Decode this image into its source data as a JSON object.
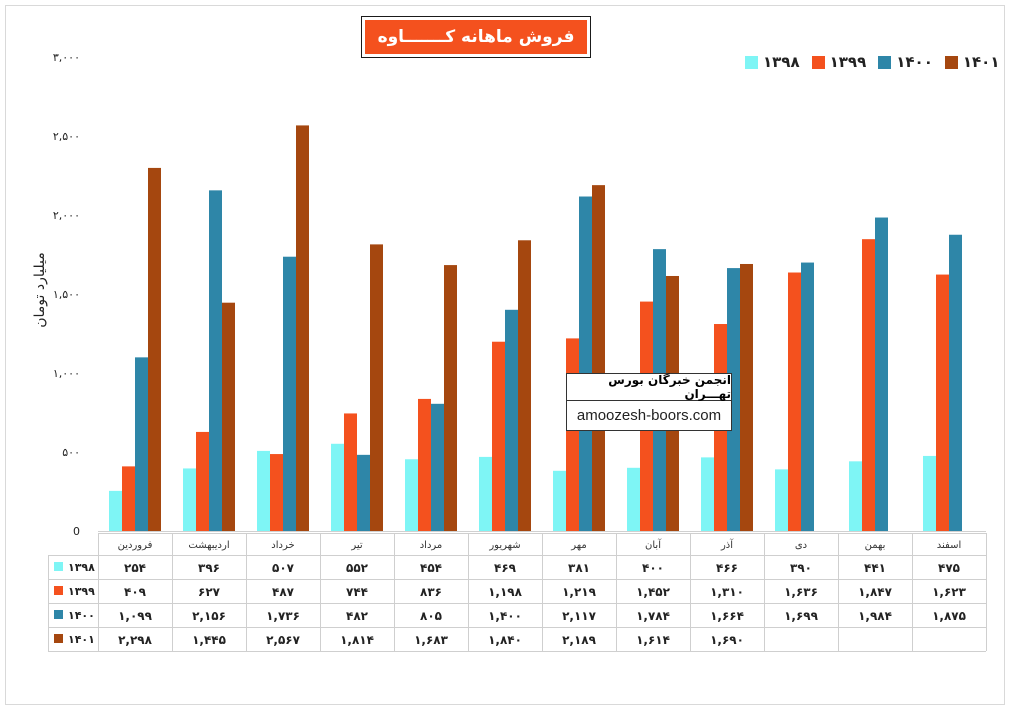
{
  "chart_data": {
    "type": "bar",
    "title": "فروش ماهانه کـــــــاوه",
    "ylabel": "میلیارد تومان",
    "xlabel": "",
    "ylim": [
      0,
      3000
    ],
    "yticks": [
      "0",
      "۵۰۰",
      "۱,۰۰۰",
      "۱,۵۰۰",
      "۲,۰۰۰",
      "۲,۵۰۰",
      "۳,۰۰۰"
    ],
    "ytick_values": [
      0,
      500,
      1000,
      1500,
      2000,
      2500,
      3000
    ],
    "legend_position": "top-right",
    "grid": false,
    "categories": [
      "فروردین",
      "اردیبهشت",
      "خرداد",
      "تیر",
      "مرداد",
      "شهریور",
      "مهر",
      "آبان",
      "آذر",
      "دی",
      "بهمن",
      "اسفند"
    ],
    "series": [
      {
        "name": "۱۳۹۸",
        "color": "#7ef5f5",
        "values": [
          254,
          396,
          507,
          552,
          454,
          469,
          381,
          400,
          466,
          390,
          441,
          475
        ],
        "labels": [
          "۲۵۴",
          "۳۹۶",
          "۵۰۷",
          "۵۵۲",
          "۴۵۴",
          "۴۶۹",
          "۳۸۱",
          "۴۰۰",
          "۴۶۶",
          "۳۹۰",
          "۴۴۱",
          "۴۷۵"
        ]
      },
      {
        "name": "۱۳۹۹",
        "color": "#f4511e",
        "values": [
          409,
          627,
          487,
          744,
          836,
          1198,
          1219,
          1452,
          1310,
          1636,
          1847,
          1623
        ],
        "labels": [
          "۴۰۹",
          "۶۲۷",
          "۴۸۷",
          "۷۴۴",
          "۸۳۶",
          "۱,۱۹۸",
          "۱,۲۱۹",
          "۱,۴۵۲",
          "۱,۳۱۰",
          "۱,۶۳۶",
          "۱,۸۴۷",
          "۱,۶۲۳"
        ]
      },
      {
        "name": "۱۴۰۰",
        "color": "#2e86a8",
        "values": [
          1099,
          2156,
          1736,
          482,
          805,
          1400,
          2117,
          1784,
          1664,
          1699,
          1984,
          1875
        ],
        "labels": [
          "۱,۰۹۹",
          "۲,۱۵۶",
          "۱,۷۳۶",
          "۴۸۲",
          "۸۰۵",
          "۱,۴۰۰",
          "۲,۱۱۷",
          "۱,۷۸۴",
          "۱,۶۶۴",
          "۱,۶۹۹",
          "۱,۹۸۴",
          "۱,۸۷۵"
        ]
      },
      {
        "name": "۱۴۰۱",
        "color": "#a5470f",
        "values": [
          2298,
          1445,
          2567,
          1814,
          1683,
          1840,
          2189,
          1614,
          1690,
          null,
          null,
          null
        ],
        "labels": [
          "۲,۲۹۸",
          "۱,۴۴۵",
          "۲,۵۶۷",
          "۱,۸۱۴",
          "۱,۶۸۳",
          "۱,۸۴۰",
          "۲,۱۸۹",
          "۱,۶۱۴",
          "۱,۶۹۰",
          "",
          "",
          ""
        ]
      }
    ]
  },
  "watermark": {
    "name": "انجمن خبرگان بورس تهـــران",
    "url": "amoozesh-boors.com"
  }
}
